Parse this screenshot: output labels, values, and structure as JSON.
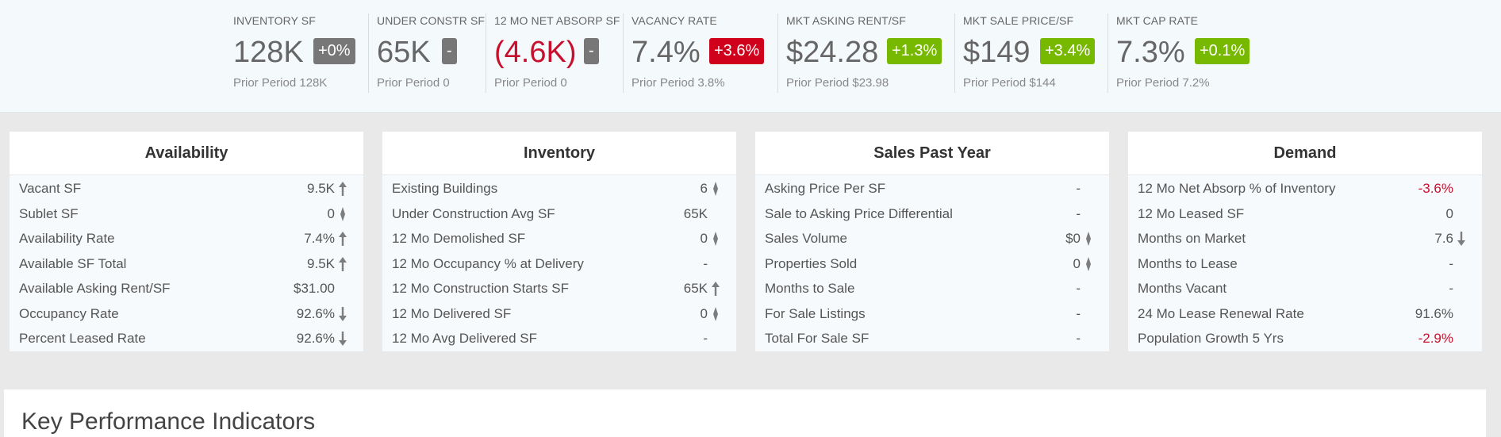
{
  "header_kpis": [
    {
      "label": "INVENTORY SF",
      "value": "128K",
      "badge": "+0%",
      "badge_color": "gray",
      "prior": "Prior Period 128K"
    },
    {
      "label": "UNDER CONSTR SF",
      "value": "65K",
      "badge": "-",
      "badge_color": "gray",
      "prior": "Prior Period 0"
    },
    {
      "label": "12 MO NET ABSORP SF",
      "value": "(4.6K)",
      "value_negative": true,
      "badge": "-",
      "badge_color": "gray",
      "prior": "Prior Period 0"
    },
    {
      "label": "VACANCY RATE",
      "value": "7.4%",
      "badge": "+3.6%",
      "badge_color": "red",
      "prior": "Prior Period 3.8%"
    },
    {
      "label": "MKT ASKING RENT/SF",
      "value": "$24.28",
      "badge": "+1.3%",
      "badge_color": "green",
      "prior": "Prior Period $23.98"
    },
    {
      "label": "MKT SALE PRICE/SF",
      "value": "$149",
      "badge": "+3.4%",
      "badge_color": "green",
      "prior": "Prior Period $144"
    },
    {
      "label": "MKT CAP RATE",
      "value": "7.3%",
      "badge": "+0.1%",
      "badge_color": "green",
      "prior": "Prior Period 7.2%"
    }
  ],
  "panels": [
    {
      "title": "Availability",
      "rows": [
        {
          "label": "Vacant SF",
          "value": "9.5K",
          "trend": "up"
        },
        {
          "label": "Sublet SF",
          "value": "0",
          "trend": "flat"
        },
        {
          "label": "Availability Rate",
          "value": "7.4%",
          "trend": "up"
        },
        {
          "label": "Available SF Total",
          "value": "9.5K",
          "trend": "up"
        },
        {
          "label": "Available Asking Rent/SF",
          "value": "$31.00",
          "trend": "none"
        },
        {
          "label": "Occupancy Rate",
          "value": "92.6%",
          "trend": "down"
        },
        {
          "label": "Percent Leased Rate",
          "value": "92.6%",
          "trend": "down"
        }
      ]
    },
    {
      "title": "Inventory",
      "rows": [
        {
          "label": "Existing Buildings",
          "value": "6",
          "trend": "flat"
        },
        {
          "label": "Under Construction Avg SF",
          "value": "65K",
          "trend": "none"
        },
        {
          "label": "12 Mo Demolished SF",
          "value": "0",
          "trend": "flat"
        },
        {
          "label": "12 Mo Occupancy % at Delivery",
          "value": "-",
          "trend": "none"
        },
        {
          "label": "12 Mo Construction Starts SF",
          "value": "65K",
          "trend": "up"
        },
        {
          "label": "12 Mo Delivered SF",
          "value": "0",
          "trend": "flat"
        },
        {
          "label": "12 Mo Avg Delivered SF",
          "value": "-",
          "trend": "none"
        }
      ]
    },
    {
      "title": "Sales Past Year",
      "rows": [
        {
          "label": "Asking Price Per SF",
          "value": "-",
          "trend": "none"
        },
        {
          "label": "Sale to Asking Price Differential",
          "value": "-",
          "trend": "none"
        },
        {
          "label": "Sales Volume",
          "value": "$0",
          "trend": "flat"
        },
        {
          "label": "Properties Sold",
          "value": "0",
          "trend": "flat"
        },
        {
          "label": "Months to Sale",
          "value": "-",
          "trend": "none"
        },
        {
          "label": "For Sale Listings",
          "value": "-",
          "trend": "none"
        },
        {
          "label": "Total For Sale SF",
          "value": "-",
          "trend": "none"
        }
      ]
    },
    {
      "title": "Demand",
      "rows": [
        {
          "label": "12 Mo Net Absorp % of Inventory",
          "value": "-3.6%",
          "negative": true,
          "trend": "none"
        },
        {
          "label": "12 Mo Leased SF",
          "value": "0",
          "trend": "none"
        },
        {
          "label": "Months on Market",
          "value": "7.6",
          "trend": "down"
        },
        {
          "label": "Months to Lease",
          "value": "-",
          "trend": "none"
        },
        {
          "label": "Months Vacant",
          "value": "-",
          "trend": "none"
        },
        {
          "label": "24 Mo Lease Renewal Rate",
          "value": "91.6%",
          "trend": "none"
        },
        {
          "label": "Population Growth 5 Yrs",
          "value": "-2.9%",
          "negative": true,
          "trend": "none"
        }
      ]
    }
  ],
  "kpi_section": {
    "title": "Key Performance Indicators"
  },
  "colors": {
    "negative": "#c8102e",
    "badge_gray": "#777777",
    "badge_red": "#d0021b",
    "badge_green": "#77b800"
  }
}
